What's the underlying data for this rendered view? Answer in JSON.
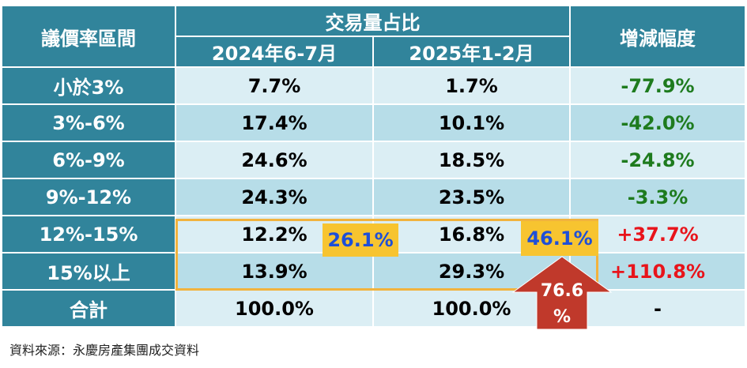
{
  "chart_data": {
    "type": "table",
    "columns": {
      "range": "議價率區間",
      "share_group": "交易量占比",
      "period1": "2024年6-7月",
      "period2": "2025年1-2月",
      "change": "增減幅度"
    },
    "rows": [
      {
        "range": "小於3%",
        "period1": "7.7%",
        "period2": "1.7%",
        "change": "-77.9%"
      },
      {
        "range": "3%-6%",
        "period1": "17.4%",
        "period2": "10.1%",
        "change": "-42.0%"
      },
      {
        "range": "6%-9%",
        "period1": "24.6%",
        "period2": "18.5%",
        "change": "-24.8%"
      },
      {
        "range": "9%-12%",
        "period1": "24.3%",
        "period2": "23.5%",
        "change": "-3.3%"
      },
      {
        "range": "12%-15%",
        "period1": "12.2%",
        "period2": "16.8%",
        "change": "+37.7%"
      },
      {
        "range": "15%以上",
        "period1": "13.9%",
        "period2": "29.3%",
        "change": "+110.8%"
      },
      {
        "range": "合計",
        "period1": "100.0%",
        "period2": "100.0%",
        "change": "-"
      }
    ],
    "annotations": {
      "period1_highlight_sum": "26.1%",
      "period2_highlight_sum": "46.1%",
      "growth_arrow": "76.6%",
      "growth_arrow_line1": "76.6",
      "growth_arrow_line2": "%"
    },
    "colors": {
      "header": "#31849b",
      "row_light": "#dbeef4",
      "row_dark": "#b7dde8",
      "negative": "#1e7b1e",
      "positive": "#e8141b",
      "highlight_border": "#f2b33d",
      "badge_fill": "#f7c430",
      "badge_text": "#1e4fd8",
      "arrow": "#c0392b"
    }
  },
  "source": "資料來源：永慶房產集團成交資料"
}
